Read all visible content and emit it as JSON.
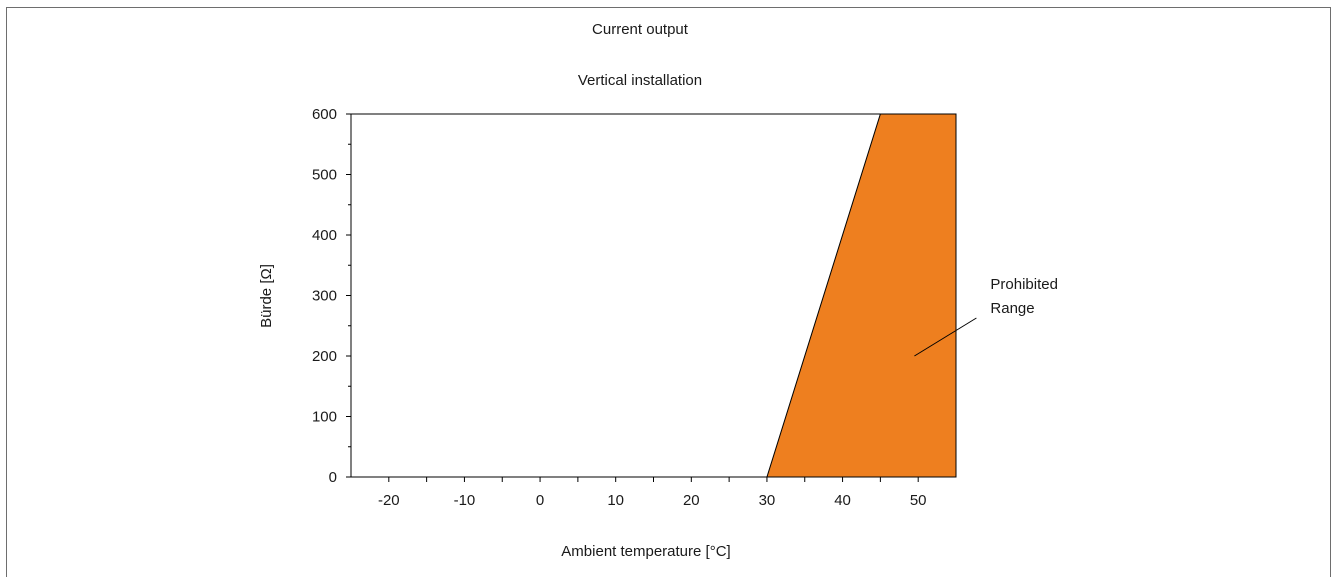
{
  "chart_data": {
    "type": "area",
    "title": "Current output",
    "subtitle": "Vertical installation",
    "xlabel": "Ambient temperature [°C]",
    "ylabel": "Bürde [Ω]",
    "xlim": [
      -25,
      55
    ],
    "ylim": [
      0,
      600
    ],
    "x_ticks": [
      -20,
      -10,
      0,
      10,
      20,
      30,
      40,
      50
    ],
    "y_ticks": [
      0,
      100,
      200,
      300,
      400,
      500,
      600
    ],
    "grid": false,
    "regions": [
      {
        "name": "Prohibited Range",
        "label_lines": [
          "Prohibited",
          "Range"
        ],
        "color": "#ee7f1f",
        "boundary": [
          {
            "x": 30,
            "y": 0
          },
          {
            "x": 45,
            "y": 600
          },
          {
            "x": 55,
            "y": 600
          },
          {
            "x": 55,
            "y": 0
          }
        ],
        "pointer_at": {
          "x": 49.5,
          "y": 200
        }
      }
    ]
  }
}
